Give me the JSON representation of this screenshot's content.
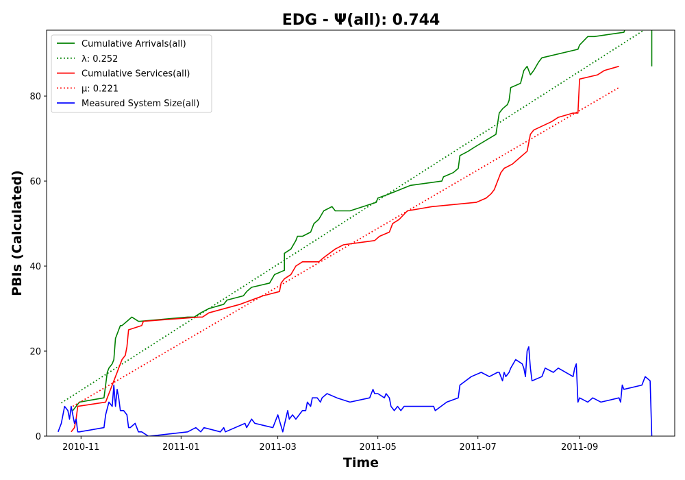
{
  "chart_data": {
    "type": "line",
    "title": "EDG -  Ψ(all): 0.744",
    "xlabel": "Time",
    "ylabel": "PBIs (Calculated)",
    "x_start": "2010-10-18",
    "xlim": [
      "2010-10-11",
      "2011-10-29"
    ],
    "ylim": [
      0,
      95.5
    ],
    "xticks": [
      "2010-11-01",
      "2011-01-01",
      "2011-03-01",
      "2011-05-01",
      "2011-07-01",
      "2011-09-01"
    ],
    "xtick_labels": [
      "2010-11",
      "2011-01",
      "2011-03",
      "2011-05",
      "2011-07",
      "2011-09"
    ],
    "yticks": [
      0,
      20,
      40,
      60,
      80
    ],
    "yticks_labels": [
      "0",
      "20",
      "40",
      "60",
      "80"
    ],
    "grid": false,
    "legend_position": "top-left",
    "legend": [
      {
        "label": "Cumulative Arrivals(all)",
        "color": "#008000",
        "style": "solid"
      },
      {
        "label": "λ: 0.252",
        "color": "#008000",
        "style": "dotted"
      },
      {
        "label": "Cumulative Services(all)",
        "color": "#ff0000",
        "style": "solid"
      },
      {
        "label": "μ: 0.221",
        "color": "#ff0000",
        "style": "dotted"
      },
      {
        "label": "Measured System Size(all)",
        "color": "#0000ff",
        "style": "solid"
      }
    ],
    "series": [
      {
        "name": "Cumulative Arrivals(all)",
        "color": "#008000",
        "style": "solid",
        "x": [
          "2010-10-27",
          "2010-10-29",
          "2010-10-30",
          "2010-10-31",
          "2010-11-15",
          "2010-11-16",
          "2010-11-17",
          "2010-11-18",
          "2010-11-20",
          "2010-11-21",
          "2010-11-22",
          "2010-11-23",
          "2010-11-24",
          "2010-11-25",
          "2010-11-26",
          "2010-11-29",
          "2010-12-02",
          "2010-12-06",
          "2010-12-07",
          "2011-01-05",
          "2011-01-09",
          "2011-01-13",
          "2011-01-18",
          "2011-01-27",
          "2011-01-29",
          "2011-02-08",
          "2011-02-10",
          "2011-02-13",
          "2011-02-24",
          "2011-02-27",
          "2011-03-05",
          "2011-03-05",
          "2011-03-09",
          "2011-03-12",
          "2011-03-13",
          "2011-03-16",
          "2011-03-21",
          "2011-03-23",
          "2011-03-26",
          "2011-03-29",
          "2011-04-03",
          "2011-04-05",
          "2011-04-14",
          "2011-04-30",
          "2011-05-01",
          "2011-05-08",
          "2011-05-21",
          "2011-06-09",
          "2011-06-10",
          "2011-06-16",
          "2011-06-19",
          "2011-06-20",
          "2011-06-25",
          "2011-06-29",
          "2011-07-12",
          "2011-07-14",
          "2011-07-16",
          "2011-07-19",
          "2011-07-20",
          "2011-07-21",
          "2011-07-27",
          "2011-07-29",
          "2011-07-31",
          "2011-08-02",
          "2011-08-04",
          "2011-08-07",
          "2011-08-09",
          "2011-08-31",
          "2011-09-01",
          "2011-09-06",
          "2011-09-10",
          "2011-09-28",
          "2011-09-29",
          "2011-10-14",
          "2011-10-15",
          "2011-10-15"
        ],
        "values": [
          6,
          7,
          7.5,
          8,
          9,
          12,
          15,
          16,
          17,
          18,
          23,
          24,
          25,
          26,
          26,
          27,
          28,
          27,
          27,
          28,
          28,
          29,
          30,
          31,
          32,
          33,
          34,
          35,
          36,
          38,
          39,
          43,
          44,
          46,
          47,
          47,
          48,
          50,
          51,
          53,
          54,
          53,
          53,
          55,
          56,
          57,
          59,
          60,
          61,
          62,
          63,
          66,
          67,
          68,
          71,
          76,
          77,
          78,
          79,
          82,
          83,
          86,
          87,
          85,
          86,
          88,
          89,
          91,
          92,
          94,
          94,
          95,
          96,
          96,
          95.5,
          87
        ]
      },
      {
        "name": "λ: 0.252",
        "color": "#008000",
        "style": "dotted",
        "x": [
          "2010-10-20",
          "2011-10-13"
        ],
        "values": [
          7.8,
          96.2
        ]
      },
      {
        "name": "Cumulative Services(all)",
        "color": "#ff0000",
        "style": "solid",
        "x": [
          "2010-10-26",
          "2010-10-28",
          "2010-10-29",
          "2010-10-30",
          "2010-11-16",
          "2010-11-17",
          "2010-11-18",
          "2010-11-20",
          "2010-11-22",
          "2010-11-23",
          "2010-11-24",
          "2010-11-26",
          "2010-11-28",
          "2010-11-29",
          "2010-11-30",
          "2010-12-08",
          "2010-12-09",
          "2011-01-12",
          "2011-01-14",
          "2011-01-18",
          "2011-02-06",
          "2011-02-20",
          "2011-03-02",
          "2011-03-03",
          "2011-03-05",
          "2011-03-09",
          "2011-03-12",
          "2011-03-16",
          "2011-03-26",
          "2011-03-29",
          "2011-04-05",
          "2011-04-10",
          "2011-04-29",
          "2011-05-02",
          "2011-05-08",
          "2011-05-09",
          "2011-05-10",
          "2011-05-14",
          "2011-05-19",
          "2011-06-03",
          "2011-06-30",
          "2011-07-06",
          "2011-07-09",
          "2011-07-11",
          "2011-07-12",
          "2011-07-15",
          "2011-07-17",
          "2011-07-22",
          "2011-07-28",
          "2011-07-31",
          "2011-08-02",
          "2011-08-04",
          "2011-08-15",
          "2011-08-19",
          "2011-08-28",
          "2011-08-31",
          "2011-09-01",
          "2011-09-12",
          "2011-09-16",
          "2011-09-25"
        ],
        "values": [
          1,
          2,
          4,
          7,
          8,
          9,
          10,
          12,
          14,
          15,
          16,
          18,
          19,
          21,
          25,
          26,
          27,
          28,
          28,
          29,
          31,
          33,
          34,
          36,
          37,
          38,
          40,
          41,
          41,
          42,
          44,
          45,
          46,
          47,
          48,
          49,
          50,
          51,
          53,
          54,
          55,
          56,
          57,
          58,
          59,
          62,
          63,
          64,
          66,
          67,
          71,
          72,
          74,
          75,
          76,
          76,
          84,
          85,
          86,
          87
        ]
      },
      {
        "name": "μ: 0.221",
        "color": "#ff0000",
        "style": "dotted",
        "x": [
          "2010-10-27",
          "2011-09-25"
        ],
        "values": [
          7,
          82
        ]
      },
      {
        "name": "Measured System Size(all)",
        "color": "#0000ff",
        "style": "solid",
        "x": [
          "2010-10-18",
          "2010-10-20",
          "2010-10-22",
          "2010-10-24",
          "2010-10-25",
          "2010-10-26",
          "2010-10-27",
          "2010-10-28",
          "2010-10-29",
          "2010-10-30",
          "2010-10-31",
          "2010-11-15",
          "2010-11-16",
          "2010-11-18",
          "2010-11-20",
          "2010-11-21",
          "2010-11-22",
          "2010-11-23",
          "2010-11-24",
          "2010-11-25",
          "2010-11-27",
          "2010-11-29",
          "2010-11-30",
          "2010-12-01",
          "2010-12-04",
          "2010-12-06",
          "2010-12-08",
          "2010-12-12",
          "2010-12-13",
          "2011-01-05",
          "2011-01-10",
          "2011-01-13",
          "2011-01-15",
          "2011-01-25",
          "2011-01-27",
          "2011-01-28",
          "2011-02-09",
          "2011-02-10",
          "2011-02-13",
          "2011-02-15",
          "2011-02-26",
          "2011-03-01",
          "2011-03-04",
          "2011-03-07",
          "2011-03-08",
          "2011-03-10",
          "2011-03-12",
          "2011-03-16",
          "2011-03-18",
          "2011-03-19",
          "2011-03-21",
          "2011-03-22",
          "2011-03-25",
          "2011-03-27",
          "2011-03-28",
          "2011-03-31",
          "2011-04-06",
          "2011-04-14",
          "2011-04-26",
          "2011-04-28",
          "2011-04-29",
          "2011-05-01",
          "2011-05-05",
          "2011-05-06",
          "2011-05-08",
          "2011-05-09",
          "2011-05-11",
          "2011-05-13",
          "2011-05-15",
          "2011-05-17",
          "2011-06-04",
          "2011-06-05",
          "2011-06-12",
          "2011-06-19",
          "2011-06-20",
          "2011-06-27",
          "2011-07-03",
          "2011-07-08",
          "2011-07-13",
          "2011-07-14",
          "2011-07-16",
          "2011-07-17",
          "2011-07-18",
          "2011-07-20",
          "2011-07-21",
          "2011-07-24",
          "2011-07-28",
          "2011-07-29",
          "2011-07-30",
          "2011-07-31",
          "2011-08-01",
          "2011-08-02",
          "2011-08-03",
          "2011-08-09",
          "2011-08-11",
          "2011-08-16",
          "2011-08-19",
          "2011-08-28",
          "2011-08-29",
          "2011-08-30",
          "2011-08-31",
          "2011-09-01",
          "2011-09-06",
          "2011-09-09",
          "2011-09-14",
          "2011-09-25",
          "2011-09-26",
          "2011-09-27",
          "2011-09-28",
          "2011-10-09",
          "2011-10-11",
          "2011-10-14",
          "2011-10-15"
        ],
        "values": [
          1,
          3,
          7,
          6,
          4,
          7,
          5,
          3,
          4,
          1,
          1,
          2,
          5,
          8,
          7,
          12,
          7,
          11,
          9,
          6,
          6,
          5,
          2,
          2,
          3,
          1,
          1,
          0,
          0,
          1,
          2,
          1,
          2,
          1,
          2,
          1,
          3,
          2,
          4,
          3,
          2,
          5,
          1,
          6,
          4,
          5,
          4,
          6,
          6,
          8,
          7,
          9,
          9,
          8,
          9,
          10,
          9,
          8,
          9,
          11,
          10,
          10,
          9,
          10,
          9,
          7,
          6,
          7,
          6,
          7,
          7,
          6,
          8,
          9,
          12,
          14,
          15,
          14,
          15,
          15,
          13,
          15,
          14,
          15,
          16,
          18,
          17,
          16,
          14,
          20,
          21,
          16,
          13,
          14,
          16,
          15,
          16,
          14,
          16,
          17,
          8,
          9,
          8,
          9,
          8,
          9,
          8,
          12,
          11,
          12,
          14,
          13,
          0
        ]
      }
    ]
  }
}
